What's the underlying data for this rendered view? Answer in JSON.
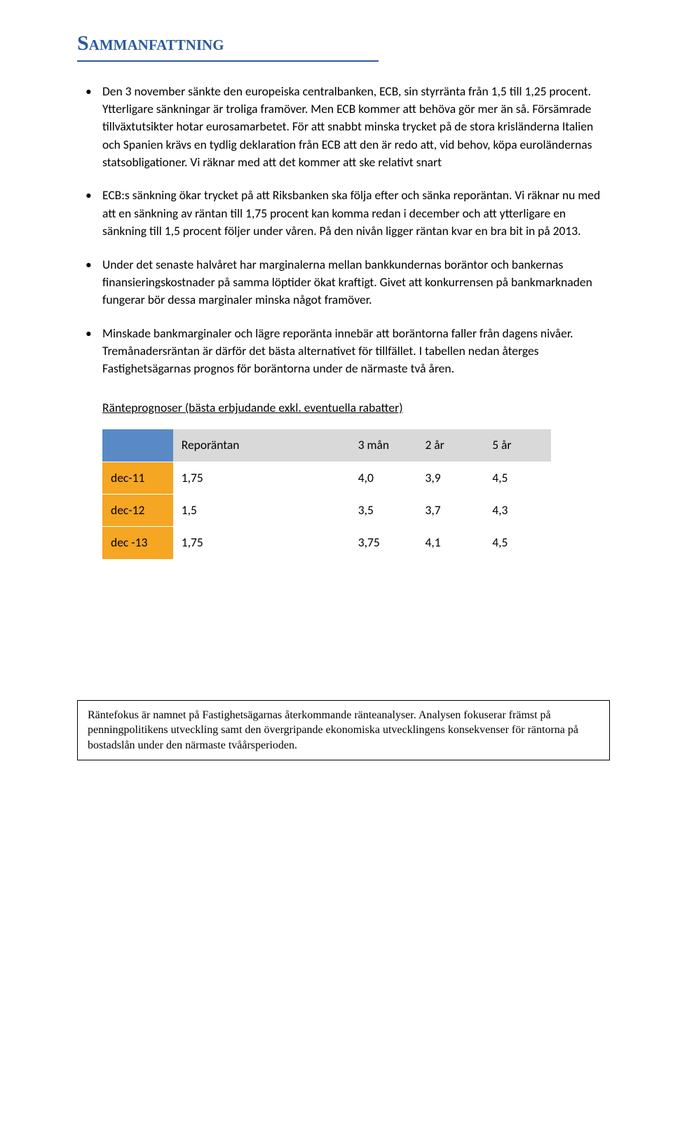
{
  "title": "Sammanfattning",
  "bullets": [
    "Den 3 november sänkte den europeiska centralbanken, ECB, sin styrränta från 1,5 till 1,25 procent. Ytterligare sänkningar är troliga framöver. Men ECB kommer att behöva gör mer än så. Försämrade tillväxtutsikter hotar eurosamarbetet. För att snabbt minska trycket på de stora krisländerna Italien och Spanien krävs en tydlig deklaration från ECB att den är redo att, vid behov, köpa euroländernas statsobligationer. Vi räknar med att det kommer att ske relativt snart",
    "ECB:s sänkning ökar trycket på att Riksbanken ska följa efter och sänka reporäntan. Vi räknar nu med att en sänkning av räntan till 1,75 procent kan komma redan i december och att ytterligare en sänkning till 1,5 procent följer under våren. På den nivån ligger räntan kvar en bra bit in på 2013.",
    "Under det senaste halvåret har marginalerna mellan bankkundernas boräntor och bankernas finansieringskostnader på samma löptider ökat kraftigt. Givet att konkurrensen på bankmarknaden fungerar bör dessa marginaler minska något framöver.",
    "Minskade bankmarginaler och lägre reporänta innebär att boräntorna faller från dagens nivåer. Tremånadersräntan är därför det bästa alternativet för tillfället. I tabellen nedan återges Fastighetsägarnas prognos för boräntorna under de närmaste två åren."
  ],
  "table_caption_underlined": "Ränteprognoser",
  "table_caption_rest": " (bästa erbjudande exkl. eventuella rabatter)",
  "table": {
    "header": {
      "repo": "Reporäntan",
      "c1": "3 mån",
      "c2": "2 år",
      "c3": "5 år"
    },
    "rows": [
      {
        "label": "dec-11",
        "repo": "1,75",
        "c1": "4,0",
        "c2": "3,9",
        "c3": "4,5"
      },
      {
        "label": "dec-12",
        "repo": "1,5",
        "c1": "3,5",
        "c2": "3,7",
        "c3": "4,3"
      },
      {
        "label": "dec -13",
        "repo": "1,75",
        "c1": "3,75",
        "c2": "4,1",
        "c3": "4,5"
      }
    ],
    "colors": {
      "header_corner_bg": "#5a8ac6",
      "header_rest_bg": "#d9d9d9",
      "row_label_bg": "#f5a623",
      "row_rest_bg": "#ffffff",
      "grid_line": "#ffffff"
    }
  },
  "footer": "Räntefokus är namnet på Fastighetsägarnas återkommande ränteanalyser. Analysen fokuserar främst på penningpolitikens utveckling samt den övergripande ekonomiska utvecklingens konsekvenser för räntorna på bostadslån under den närmaste tvåårsperioden."
}
